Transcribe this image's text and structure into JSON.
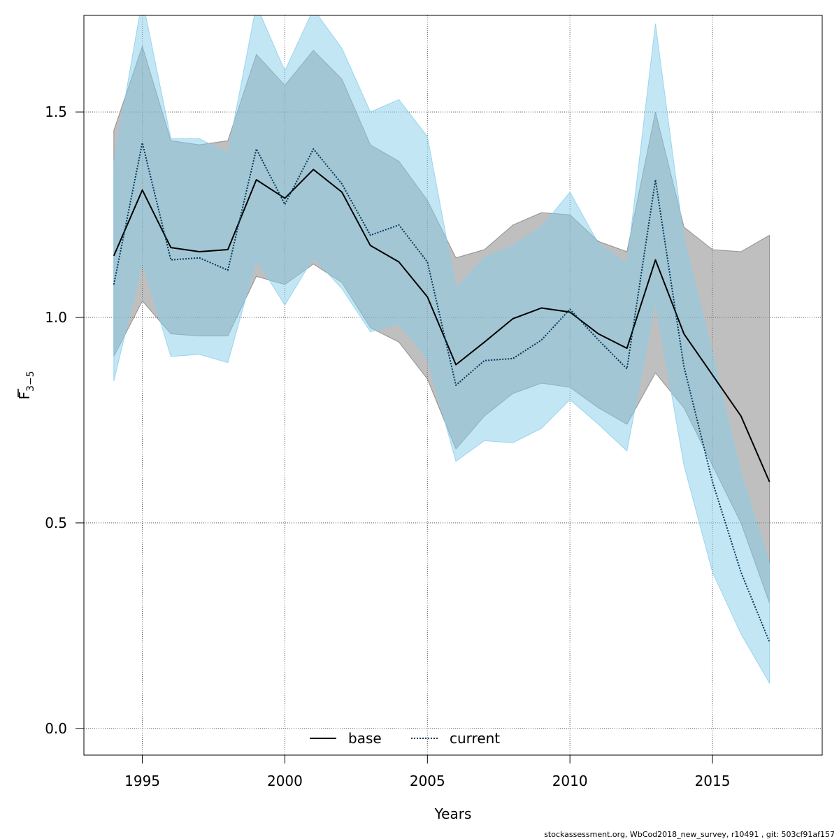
{
  "chart_data": {
    "type": "line",
    "title": "",
    "xlabel": "Years",
    "ylabel_main": "F",
    "ylabel_sub": "3−5",
    "xlim": [
      1992.95,
      2018.85
    ],
    "ylim": [
      -0.065,
      1.735
    ],
    "x_ticks": [
      1995,
      2000,
      2005,
      2010,
      2015
    ],
    "y_ticks": [
      0.0,
      0.5,
      1.0,
      1.5
    ],
    "y_tick_labels": [
      "0.0",
      "0.5",
      "1.0",
      "1.5"
    ],
    "grid": true,
    "legend_position": "bottom",
    "series": [
      {
        "name": "base",
        "color": "#000000",
        "band_color": "#808080",
        "line_style": "solid",
        "x": [
          1994,
          1995,
          1996,
          1997,
          1998,
          1999,
          2000,
          2001,
          2002,
          2003,
          2004,
          2005,
          2006,
          2007,
          2008,
          2009,
          2010,
          2011,
          2012,
          2013,
          2014,
          2015,
          2016,
          2017
        ],
        "y": [
          1.15,
          1.31,
          1.17,
          1.16,
          1.165,
          1.335,
          1.29,
          1.36,
          1.305,
          1.175,
          1.135,
          1.05,
          0.885,
          0.94,
          0.997,
          1.023,
          1.013,
          0.96,
          0.925,
          1.14,
          0.96,
          0.86,
          0.76,
          0.6
        ],
        "lower": [
          0.905,
          1.04,
          0.96,
          0.955,
          0.955,
          1.1,
          1.08,
          1.13,
          1.085,
          0.975,
          0.94,
          0.85,
          0.68,
          0.76,
          0.815,
          0.84,
          0.83,
          0.78,
          0.74,
          0.865,
          0.78,
          0.64,
          0.5,
          0.305
        ],
        "upper": [
          1.455,
          1.66,
          1.43,
          1.42,
          1.43,
          1.64,
          1.565,
          1.65,
          1.58,
          1.42,
          1.38,
          1.285,
          1.145,
          1.165,
          1.225,
          1.255,
          1.25,
          1.185,
          1.16,
          1.5,
          1.22,
          1.165,
          1.16,
          1.2
        ]
      },
      {
        "name": "current",
        "color": "#003a57",
        "band_color": "#87ceeb",
        "line_style": "dotted",
        "x": [
          1994,
          1995,
          1996,
          1997,
          1998,
          1999,
          2000,
          2001,
          2002,
          2003,
          2004,
          2005,
          2006,
          2007,
          2008,
          2009,
          2010,
          2011,
          2012,
          2013,
          2014,
          2015,
          2016,
          2017
        ],
        "y": [
          1.08,
          1.425,
          1.14,
          1.145,
          1.115,
          1.41,
          1.275,
          1.41,
          1.325,
          1.2,
          1.225,
          1.135,
          0.835,
          0.895,
          0.9,
          0.945,
          1.02,
          0.945,
          0.875,
          1.335,
          0.88,
          0.6,
          0.38,
          0.21
        ],
        "lower": [
          0.845,
          1.135,
          0.905,
          0.91,
          0.89,
          1.14,
          1.03,
          1.145,
          1.07,
          0.965,
          0.985,
          0.9,
          0.65,
          0.7,
          0.695,
          0.73,
          0.8,
          0.74,
          0.675,
          1.04,
          0.64,
          0.38,
          0.23,
          0.11
        ],
        "upper": [
          1.375,
          1.775,
          1.435,
          1.435,
          1.4,
          1.76,
          1.6,
          1.75,
          1.655,
          1.5,
          1.53,
          1.44,
          1.07,
          1.145,
          1.175,
          1.22,
          1.305,
          1.18,
          1.13,
          1.715,
          1.19,
          0.91,
          0.62,
          0.4
        ]
      }
    ]
  },
  "footer_text": "stockassessment.org, WbCod2018_new_survey, r10491 , git: 503cf91af157"
}
